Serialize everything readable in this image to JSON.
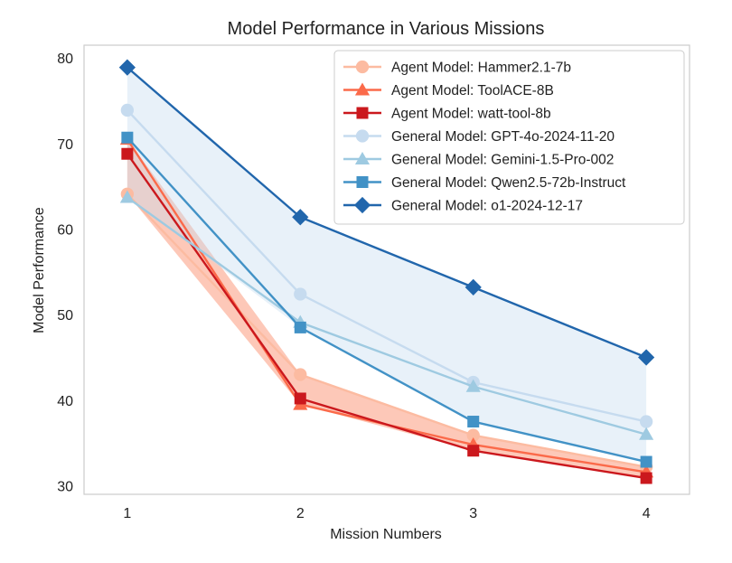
{
  "chart_data": {
    "type": "line",
    "title": "Model Performance in Various Missions",
    "xlabel": "Mission Numbers",
    "ylabel": "Model Performance",
    "x": [
      1,
      2,
      3,
      4
    ],
    "x_tick_labels": [
      "1",
      "2",
      "3",
      "4"
    ],
    "y_ticks": [
      30,
      40,
      50,
      60,
      70,
      80
    ],
    "y_tick_labels": [
      "30",
      "40",
      "50",
      "60",
      "70",
      "80"
    ],
    "xlim": [
      0.75,
      4.25
    ],
    "ylim": [
      29.0,
      81.5
    ],
    "grid": false,
    "legend_position": "top-right",
    "series": [
      {
        "name": "Agent Model: Hammer2.1-7b",
        "values": [
          64.1,
          43.0,
          35.9,
          32.2
        ],
        "color": "#fcbba1",
        "marker": "circle"
      },
      {
        "name": "Agent Model: ToolACE-8B",
        "values": [
          70.5,
          39.5,
          34.8,
          31.6
        ],
        "color": "#fb6a4a",
        "marker": "triangle"
      },
      {
        "name": "Agent Model: watt-tool-8b",
        "values": [
          68.8,
          40.2,
          34.1,
          30.9
        ],
        "color": "#cb181d",
        "marker": "square"
      },
      {
        "name": "General Model: GPT-4o-2024-11-20",
        "values": [
          73.9,
          52.4,
          42.1,
          37.5
        ],
        "color": "#c6dbef",
        "marker": "circle"
      },
      {
        "name": "General Model: Gemini-1.5-Pro-002",
        "values": [
          63.7,
          49.1,
          41.6,
          36.0
        ],
        "color": "#9ecae1",
        "marker": "triangle"
      },
      {
        "name": "General Model: Qwen2.5-72b-Instruct",
        "values": [
          70.7,
          48.5,
          37.5,
          32.8
        ],
        "color": "#4292c6",
        "marker": "square"
      },
      {
        "name": "General Model: o1-2024-12-17",
        "values": [
          78.9,
          61.4,
          53.2,
          45.0
        ],
        "color": "#2166ac",
        "marker": "diamond"
      }
    ],
    "bands": [
      {
        "group": "Agent Model",
        "color": "#fc9272",
        "opacity": 0.5
      },
      {
        "group": "General Model",
        "color": "#c6dbef",
        "opacity": 0.4
      }
    ]
  }
}
